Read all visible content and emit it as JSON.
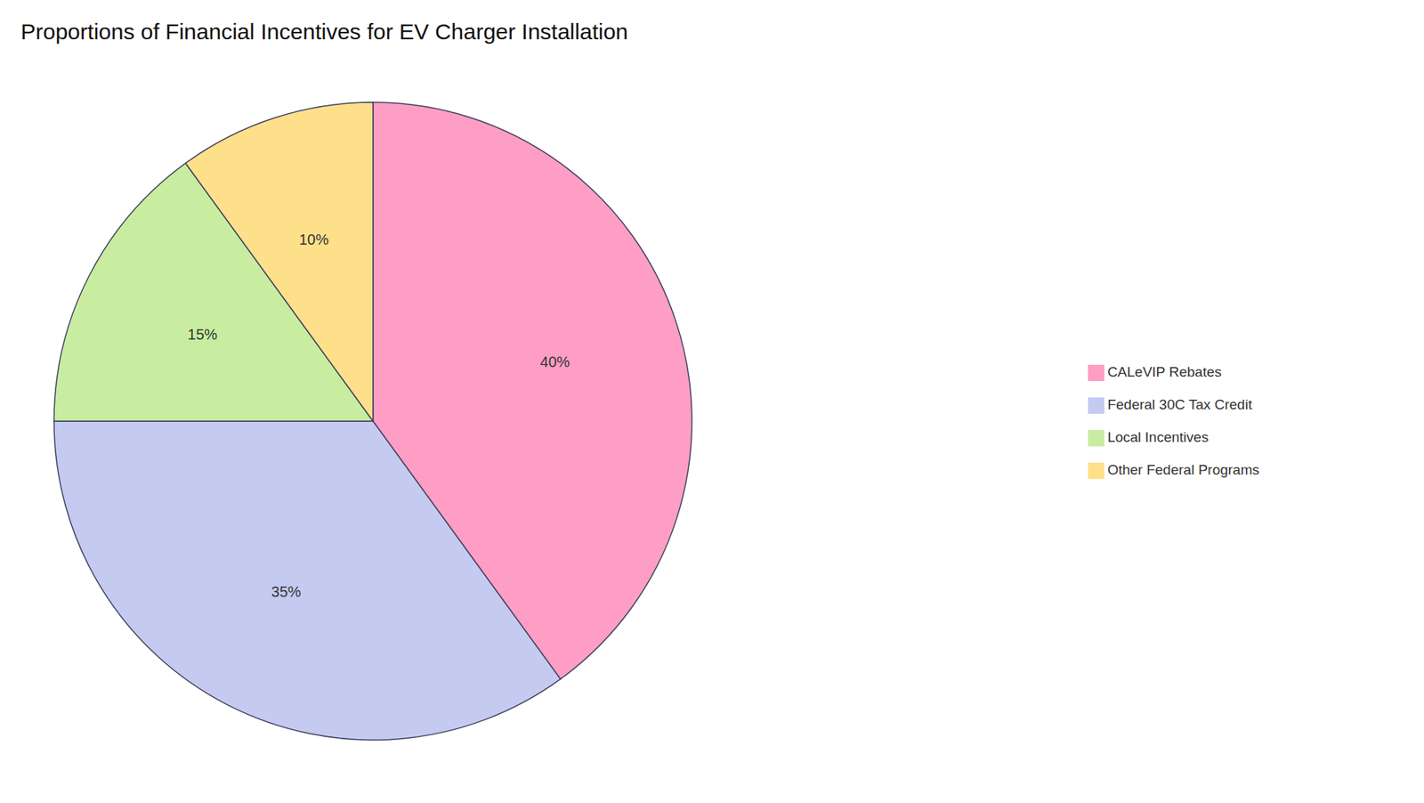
{
  "chart_data": {
    "type": "pie",
    "title": "Proportions of Financial Incentives for EV Charger Installation",
    "categories": [
      "CALeVIP Rebates",
      "Federal 30C Tax Credit",
      "Local Incentives",
      "Other Federal Programs"
    ],
    "values": [
      40,
      35,
      15,
      10
    ],
    "value_labels": [
      "40%",
      "35%",
      "15%",
      "10%"
    ],
    "colors": [
      "#FF9EC4",
      "#C5CAF0",
      "#C8EDA0",
      "#FFE08A"
    ],
    "data_labels": true,
    "legend": "right"
  }
}
